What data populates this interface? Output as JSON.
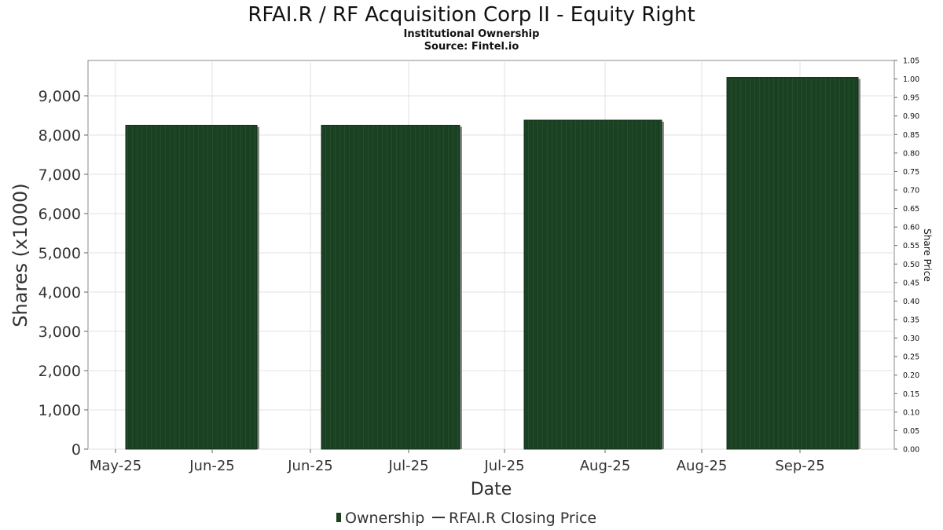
{
  "chart_data": {
    "type": "bar",
    "title": "RFAI.R / RF Acquisition Corp II - Equity Right",
    "subtitle_1": "Institutional Ownership",
    "subtitle_2": "Source: Fintel.io",
    "xlabel": "Date",
    "ylabel": "Shares (x1000)",
    "y2label": "Share Price",
    "x_tick_labels": [
      "May-25",
      "Jun-25",
      "Jun-25",
      "Jul-25",
      "Jul-25",
      "Aug-25",
      "Aug-25",
      "Sep-25"
    ],
    "ylim": [
      0,
      9900
    ],
    "y_ticks": [
      0,
      1000,
      2000,
      3000,
      4000,
      5000,
      6000,
      7000,
      8000,
      9000
    ],
    "y_tick_labels": [
      "0",
      "1,000",
      "2,000",
      "3,000",
      "4,000",
      "5,000",
      "6,000",
      "7,000",
      "8,000",
      "9,000"
    ],
    "y2lim": [
      0,
      1.05
    ],
    "y2_ticks": [
      0,
      0.05,
      0.1,
      0.15,
      0.2,
      0.25,
      0.3,
      0.35,
      0.4,
      0.45,
      0.5,
      0.55,
      0.6,
      0.65,
      0.7,
      0.75,
      0.8,
      0.85,
      0.9,
      0.95,
      1.0,
      1.05
    ],
    "y2_tick_labels": [
      "0.00",
      "0.05",
      "0.10",
      "0.15",
      "0.20",
      "0.25",
      "0.30",
      "0.35",
      "0.40",
      "0.45",
      "0.50",
      "0.55",
      "0.60",
      "0.65",
      "0.70",
      "0.75",
      "0.80",
      "0.85",
      "0.90",
      "0.95",
      "1.00",
      "1.05"
    ],
    "series": [
      {
        "name": "Ownership",
        "color": "#1a4222",
        "values": [
          8250,
          8250,
          8380,
          9470
        ]
      },
      {
        "name": "RFAI.R Closing Price",
        "color": "#333333",
        "values": []
      }
    ],
    "grid": true,
    "legend_position": "bottom-center"
  }
}
